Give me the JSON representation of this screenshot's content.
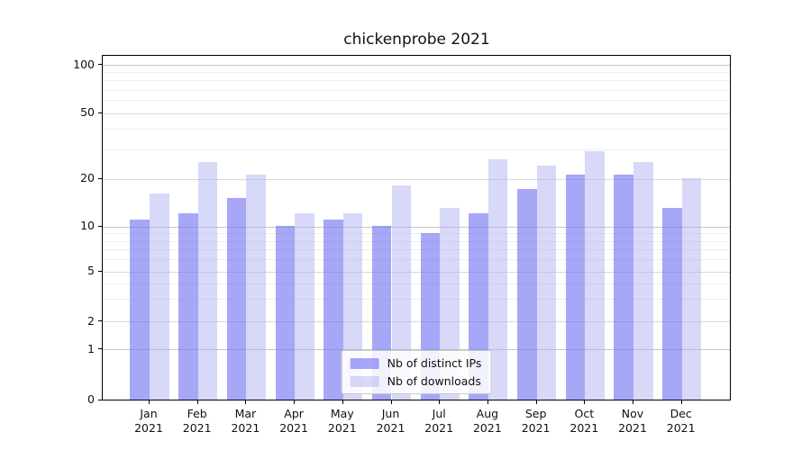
{
  "chart_data": {
    "type": "bar",
    "title": "chickenprobe 2021",
    "x_months": [
      "Jan",
      "Feb",
      "Mar",
      "Apr",
      "May",
      "Jun",
      "Jul",
      "Aug",
      "Sep",
      "Oct",
      "Nov",
      "Dec"
    ],
    "x_year": "2021",
    "series": [
      {
        "name": "Nb of distinct IPs",
        "color": "rgba(115,115,243,0.63)",
        "values": [
          11,
          12,
          15,
          10,
          11,
          10,
          9,
          12,
          17,
          21,
          21,
          13
        ]
      },
      {
        "name": "Nb of downloads",
        "color": "rgba(175,175,240,0.49)",
        "values": [
          16,
          25,
          21,
          12,
          12,
          18,
          13,
          26,
          24,
          29,
          25,
          20
        ]
      }
    ],
    "y_scale": "symlog",
    "y_ticks": [
      0,
      1,
      2,
      5,
      10,
      20,
      50,
      100
    ],
    "y_major_ticks": [
      1,
      10,
      100
    ],
    "y_minor_gridlines": [
      3,
      4,
      6,
      7,
      8,
      9,
      30,
      40,
      60,
      70,
      80,
      90
    ],
    "ylim": [
      0,
      115
    ],
    "grid": true,
    "legend_position": "lower center"
  },
  "colors": {
    "grid_major": "#c7c7c7",
    "grid_labeled_minor": "#d9d9d9",
    "grid_faint_minor": "#ededed",
    "axis": "#000000",
    "text": "#111111"
  }
}
